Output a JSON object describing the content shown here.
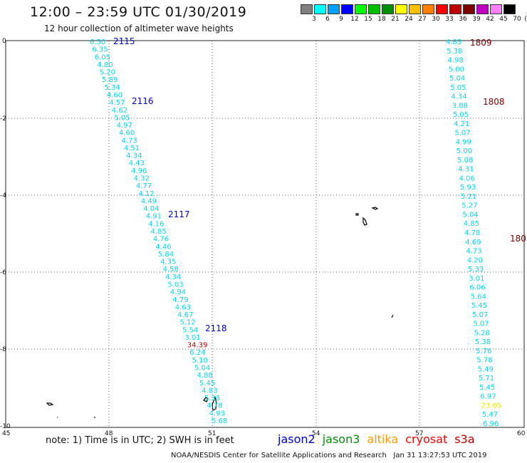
{
  "title": "12:00 – 23:59 UTC 01/30/2019",
  "subtitle": "12 hour collection of altimeter wave heights",
  "legend": {
    "labels": [
      "3",
      "6",
      "9",
      "12",
      "15",
      "18",
      "21",
      "24",
      "27",
      "30",
      "33",
      "36",
      "39",
      "42",
      "45",
      "70"
    ],
    "unit": "(ft)",
    "colors": [
      "#808080",
      "#00ffff",
      "#00a0ff",
      "#0000ff",
      "#00ff00",
      "#00c000",
      "#009000",
      "#ffff00",
      "#ffc000",
      "#ff8000",
      "#ff0000",
      "#c00000",
      "#800000",
      "#c000c0",
      "#ff80ff",
      "#000000"
    ]
  },
  "axes": {
    "x_ticks": [
      "45",
      "48",
      "51",
      "54",
      "57",
      "60"
    ],
    "y_ticks": [
      "0",
      "-2",
      "-4",
      "-6",
      "-8",
      "-10"
    ]
  },
  "passes": [
    {
      "label": "2115",
      "color": "#0000cc"
    },
    {
      "label": "2116",
      "color": "#0000cc"
    },
    {
      "label": "2117",
      "color": "#0000cc"
    },
    {
      "label": "2118",
      "color": "#0000cc"
    },
    {
      "label": "1809",
      "color": "#800000"
    },
    {
      "label": "1808",
      "color": "#800000"
    },
    {
      "label": "180",
      "color": "#800000"
    }
  ],
  "track_west": {
    "values": [
      "6.50",
      "6.35",
      "6.05",
      "4.80",
      "5.20",
      "5.89",
      "5.34",
      "4.60",
      "4.57",
      "4.62",
      "5.05",
      "4.97",
      "4.60",
      "4.73",
      "4.51",
      "4.34",
      "4.43",
      "4.96",
      "4.32",
      "4.77",
      "4.12",
      "4.49",
      "4.04",
      "4.91",
      "4.16",
      "4.85",
      "4.76",
      "4.46",
      "5.84",
      "4.35",
      "4.58",
      "4.34",
      "5.03",
      "4.94",
      "4.79",
      "4.63",
      "4.67",
      "5.12",
      "5.54",
      "3.01",
      "34.39",
      "6.24",
      "5.10",
      "5.04",
      "4.88",
      "5.45",
      "4.83",
      "5.38",
      "4.78",
      "4.93",
      "5.68"
    ],
    "colors": {
      "default": "#00d8e8",
      "outlier": "#c00000"
    }
  },
  "track_east": {
    "values": [
      "4.83",
      "5.38",
      "4.98",
      "5.00",
      "5.04",
      "5.05",
      "4.34",
      "3.88",
      "5.05",
      "4.21",
      "5.07",
      "4.99",
      "5.00",
      "5.08",
      "4.31",
      "4.06",
      "5.93",
      "5.21",
      "5.27",
      "5.04",
      "4.85",
      "4.78",
      "4.69",
      "4.73",
      "4.20",
      "5.33",
      "3.01",
      "6.06",
      "5.64",
      "5.45",
      "5.07",
      "5.07",
      "5.28",
      "5.38",
      "5.76",
      "5.78",
      "5.49",
      "5.71",
      "5.45",
      "6.97",
      "23.05",
      "5.47",
      "6.96"
    ],
    "colors": {
      "default": "#00d8e8",
      "highlight": "#e8e800"
    }
  },
  "note": "note: 1) Time is in UTC; 2) SWH is in feet",
  "satellites": [
    {
      "name": "jason2",
      "color": "#0000cc"
    },
    {
      "name": "jason3",
      "color": "#009000"
    },
    {
      "name": "altika",
      "color": "#ff9900"
    },
    {
      "name": "cryosat",
      "color": "#ff0000"
    },
    {
      "name": "s3a",
      "color": "#c00000"
    }
  ],
  "credit": "NOAA/NESDIS Center for Satellite Applications and Research",
  "timestamp": "Jan 31 13:27:53 UTC 2019"
}
